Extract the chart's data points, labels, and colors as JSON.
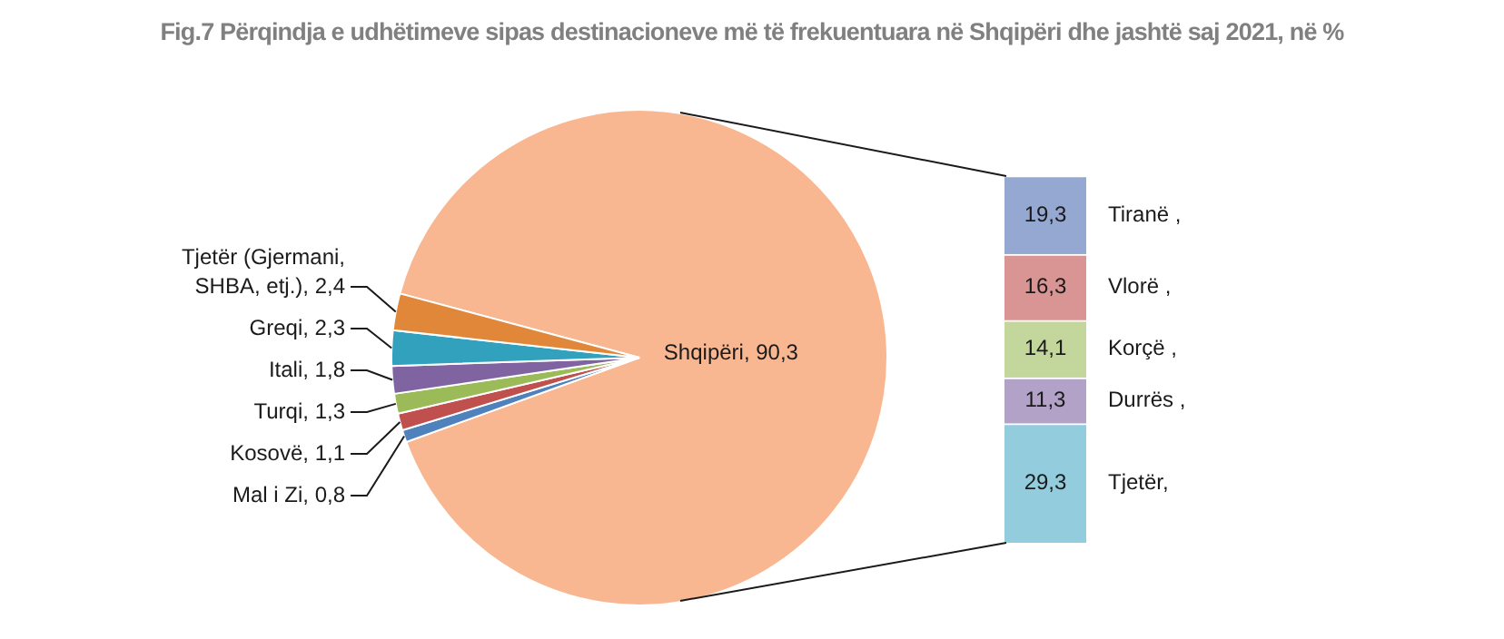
{
  "chart_data": [
    {
      "type": "pie",
      "title": "Fig.7 Përqindja e udhëtimeve sipas destinacioneve më të frekuentuara në Shqipëri dhe jashtë saj  2021, në %",
      "categories": [
        "Shqipëri",
        "Mal i Zi",
        "Kosovë",
        "Turqi",
        "Itali",
        "Greqi",
        "Tjetër (Gjermani, SHBA, etj.)"
      ],
      "values": [
        90.3,
        0.8,
        1.1,
        1.3,
        1.8,
        2.3,
        2.4
      ],
      "value_labels": [
        "90,3",
        "0,8",
        "1,1",
        "1,3",
        "1,8",
        "2,3",
        "2,4"
      ],
      "colors": [
        "#f9b791",
        "#4f81bd",
        "#c0504d",
        "#9bbb59",
        "#8064a2",
        "#31a1bd",
        "#e0873a"
      ]
    },
    {
      "type": "bar",
      "stacked": true,
      "categories": [
        null
      ],
      "series": [
        {
          "name": "Tjetër,",
          "color": "#93cddd",
          "values": [
            29.3
          ],
          "value_labels": [
            "29,3"
          ]
        },
        {
          "name": "Durrës ,",
          "color": "#b3a2c7",
          "values": [
            11.3
          ],
          "value_labels": [
            "11,3"
          ]
        },
        {
          "name": "Korçë ,",
          "color": "#c3d69b",
          "values": [
            14.1
          ],
          "value_labels": [
            "14,1"
          ]
        },
        {
          "name": "Vlorë ,",
          "color": "#d99594",
          "values": [
            16.3
          ],
          "value_labels": [
            "16,3"
          ]
        },
        {
          "name": "Tiranë ,",
          "color": "#95a8d1",
          "values": [
            19.3
          ],
          "value_labels": [
            "19,3"
          ]
        }
      ]
    }
  ]
}
